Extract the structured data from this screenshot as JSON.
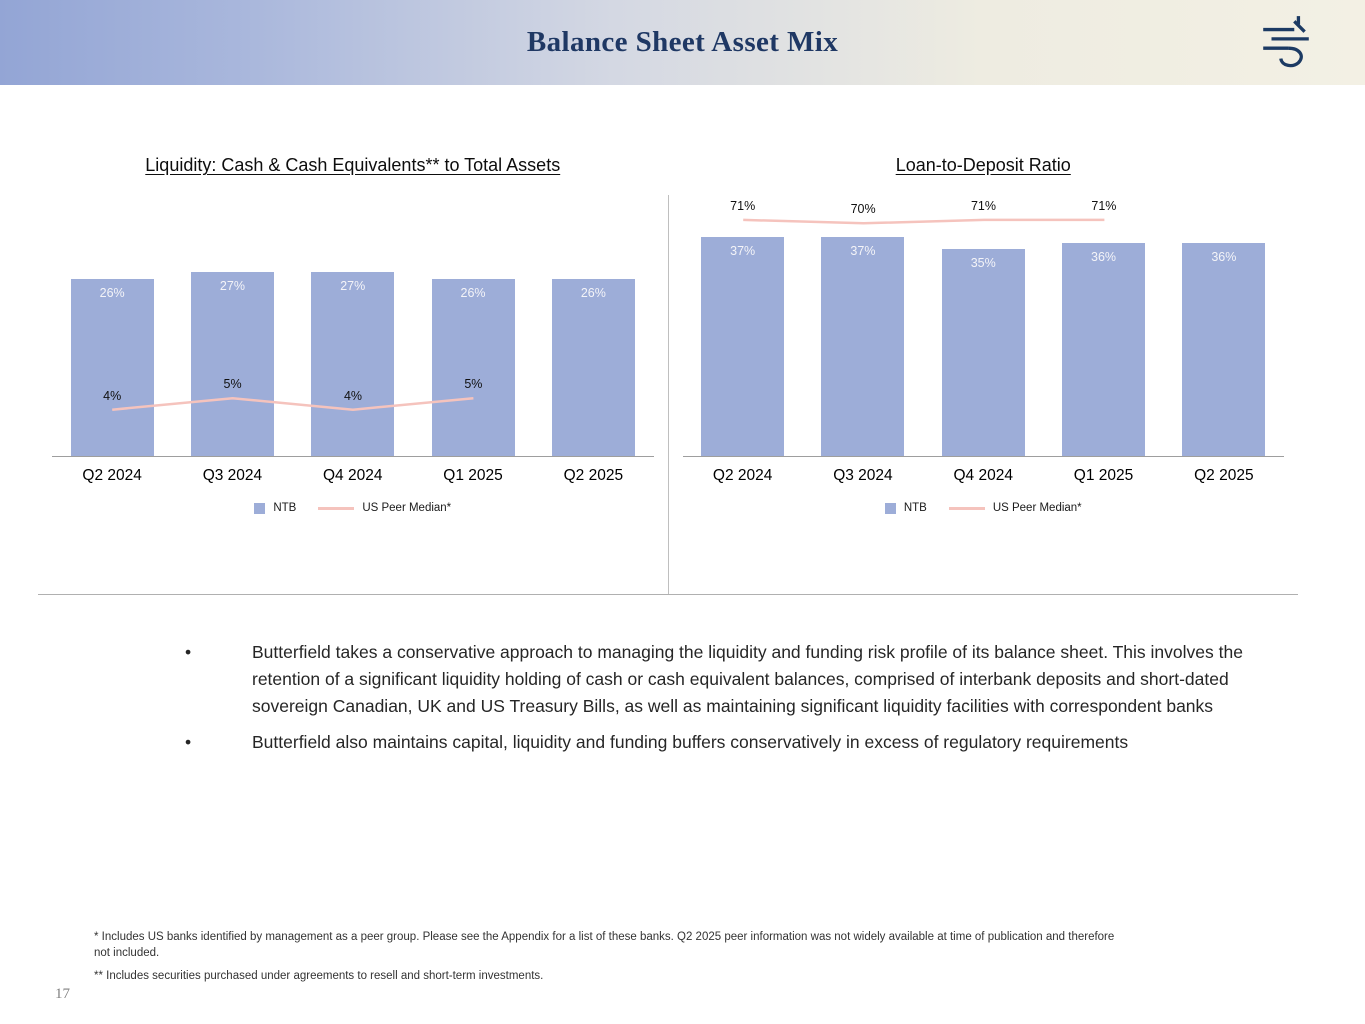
{
  "header": {
    "title": "Balance Sheet Asset Mix",
    "logo": "butterfield-griffin-logo"
  },
  "chart_data": [
    {
      "type": "bar",
      "title": "Liquidity: Cash & Cash Equivalents** to Total Assets",
      "categories": [
        "Q2 2024",
        "Q3 2024",
        "Q4 2024",
        "Q1 2025",
        "Q2 2025"
      ],
      "series": [
        {
          "name": "NTB",
          "kind": "bar",
          "color": "#9dadd8",
          "values": [
            26,
            27,
            27,
            26,
            26
          ]
        },
        {
          "name": "US Peer Median*",
          "kind": "line",
          "color": "#f5c3bd",
          "values": [
            4,
            5,
            4,
            5,
            null
          ]
        }
      ],
      "bar_axis_max": 39,
      "line_axis_max": 23,
      "legend_position": "bottom",
      "grid": false
    },
    {
      "type": "bar",
      "title": "Loan-to-Deposit Ratio",
      "categories": [
        "Q2 2024",
        "Q3 2024",
        "Q4 2024",
        "Q1 2025",
        "Q2 2025"
      ],
      "series": [
        {
          "name": "NTB",
          "kind": "bar",
          "color": "#9dadd8",
          "values": [
            37,
            37,
            35,
            36,
            36
          ]
        },
        {
          "name": "US Peer Median*",
          "kind": "line",
          "color": "#f5c3bd",
          "values": [
            71,
            70,
            71,
            71,
            null
          ]
        }
      ],
      "bar_axis_max": 45,
      "line_axis_max": 80,
      "legend_position": "bottom",
      "grid": false
    }
  ],
  "bullets": [
    "Butterfield takes a conservative approach to managing the liquidity and funding risk profile of its balance sheet. This involves the retention of a significant liquidity holding of cash or cash equivalent balances, comprised of interbank deposits and short-dated sovereign Canadian, UK and US Treasury Bills, as well as maintaining significant liquidity facilities with correspondent banks",
    "Butterfield also maintains capital, liquidity and funding buffers conservatively in excess of regulatory requirements"
  ],
  "footnotes": [
    "* Includes US banks identified by management as a peer group. Please see the Appendix for a list of these banks. Q2 2025 peer information was not widely available at time of publication and therefore not included.",
    "** Includes securities purchased under agreements to resell and short-term investments."
  ],
  "page_number": "17",
  "colors": {
    "bar": "#9dadd8",
    "peer_line": "#f5c3bd",
    "title_navy": "#1f3864",
    "header_gradient_left": "#93a5d5",
    "header_gradient_right": "#f3f0e4"
  }
}
